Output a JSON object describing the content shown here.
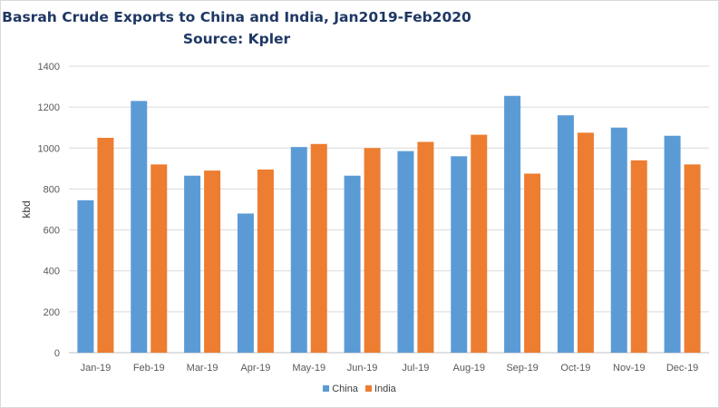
{
  "chart_data": {
    "type": "bar",
    "title_line1": "Basrah Crude Exports to China and India, Jan2019-Feb2020",
    "title_line2": "Source: Kpler",
    "ylabel": "kbd",
    "xlabel": "",
    "ylim": [
      0,
      1400
    ],
    "yticks": [
      0,
      200,
      400,
      600,
      800,
      1000,
      1200,
      1400
    ],
    "grid": true,
    "legend_position": "bottom",
    "categories": [
      "Jan-19",
      "Feb-19",
      "Mar-19",
      "Apr-19",
      "May-19",
      "Jun-19",
      "Jul-19",
      "Aug-19",
      "Sep-19",
      "Oct-19",
      "Nov-19",
      "Dec-19"
    ],
    "series": [
      {
        "name": "China",
        "color": "#5b9bd5",
        "values": [
          745,
          1230,
          865,
          680,
          1005,
          865,
          985,
          960,
          1255,
          1160,
          1100,
          1060
        ]
      },
      {
        "name": "India",
        "color": "#ed7d31",
        "values": [
          1050,
          920,
          890,
          895,
          1020,
          1000,
          1030,
          1065,
          875,
          1075,
          940,
          920
        ]
      }
    ]
  }
}
